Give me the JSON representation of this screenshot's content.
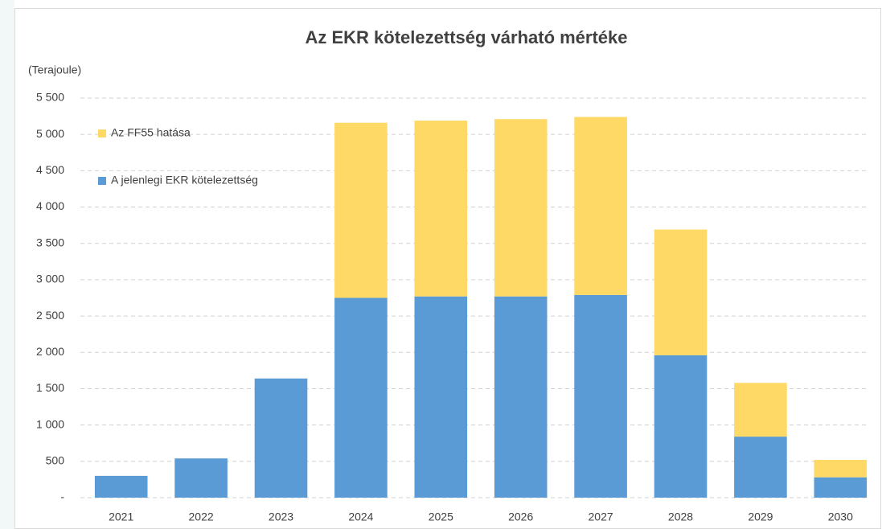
{
  "chart_data": {
    "type": "stacked_bar",
    "title": "Az EKR kötelezettség várható mértéke",
    "y_label": "(Terajoule)",
    "categories": [
      "2021",
      "2022",
      "2023",
      "2024",
      "2025",
      "2026",
      "2027",
      "2028",
      "2029",
      "2030"
    ],
    "series": [
      {
        "name": "A jelenlegi EKR kötelezettség",
        "color": "#5b9bd5",
        "values": [
          300,
          540,
          1640,
          2750,
          2770,
          2770,
          2790,
          1960,
          840,
          280
        ]
      },
      {
        "name": "Az FF55 hatása",
        "color": "#ffd966",
        "values": [
          null,
          null,
          null,
          2410,
          2420,
          2440,
          2450,
          1730,
          740,
          240
        ]
      }
    ],
    "ylim": [
      0,
      5500
    ],
    "yticks": [
      {
        "value": 0,
        "label": "-"
      },
      500,
      {
        "value": 1000,
        "label": "1 000"
      },
      {
        "value": 1500,
        "label": "1 500"
      },
      {
        "value": 2000,
        "label": "2 000"
      },
      {
        "value": 2500,
        "label": "2 500"
      },
      {
        "value": 3000,
        "label": "3 000"
      },
      {
        "value": 3500,
        "label": "3 500"
      },
      {
        "value": 4000,
        "label": "4 000"
      },
      {
        "value": 4500,
        "label": "4 500"
      },
      {
        "value": 5000,
        "label": "5 000"
      },
      {
        "value": 5500,
        "label": "5 500"
      }
    ],
    "grid": true,
    "legend": "top-left"
  }
}
